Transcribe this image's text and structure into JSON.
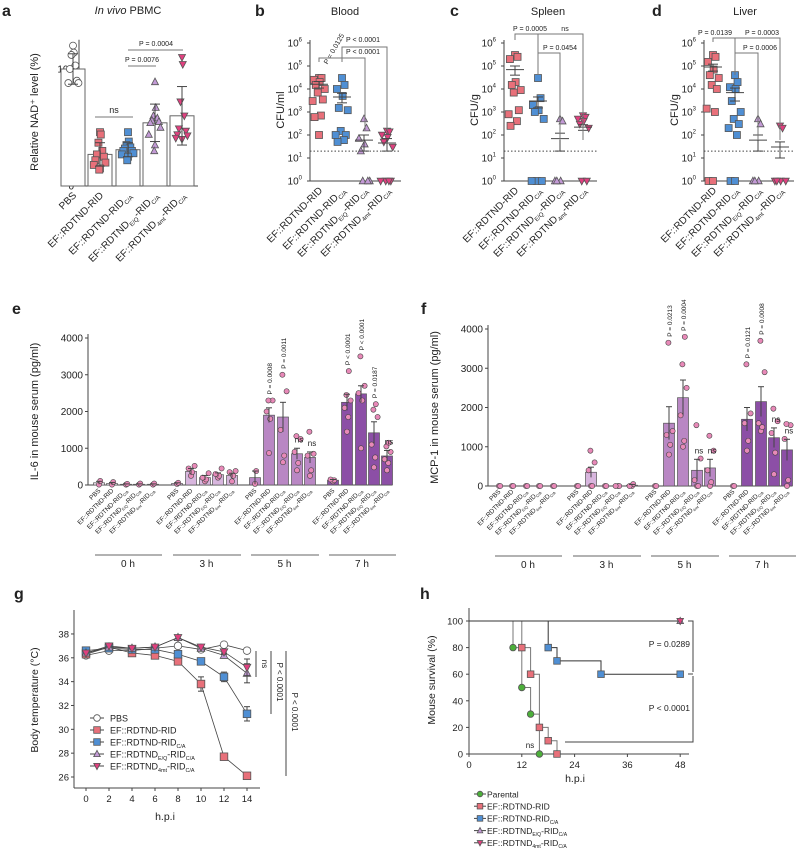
{
  "colors": {
    "PBS": "#ffffff",
    "RID": "#e8707a",
    "CA": "#4f8fd4",
    "EQ": "#c39ad6",
    "4mt": "#e0407f",
    "Parental": "#4caf3a",
    "point": "#e889b8",
    "bar_0h": "#f2e4f2",
    "bar_3h": "#d8b6de",
    "bar_5h": "#b987c4",
    "bar_7h": "#8c4fa6"
  },
  "groups": [
    {
      "key": "PBS",
      "parts": [
        {
          "t": "PBS"
        }
      ]
    },
    {
      "key": "RID",
      "parts": [
        {
          "t": "EF::RDTND-RID"
        }
      ]
    },
    {
      "key": "CA",
      "parts": [
        {
          "t": "EF::RDTND-RID"
        },
        {
          "t": "C/A",
          "sub": true
        }
      ]
    },
    {
      "key": "EQ",
      "parts": [
        {
          "t": "EF::RDTND"
        },
        {
          "t": "E/Q",
          "sub": true
        },
        {
          "t": "-RID"
        },
        {
          "t": "C/A",
          "sub": true
        }
      ]
    },
    {
      "key": "4mt",
      "parts": [
        {
          "t": "EF::RDTND"
        },
        {
          "t": "4mt",
          "sub": true
        },
        {
          "t": "-RID"
        },
        {
          "t": "C/A",
          "sub": true
        }
      ]
    }
  ],
  "parental_label": "Parental",
  "log_tick_base": "10",
  "chart_data": [
    {
      "panel": "a",
      "type": "bar",
      "title_italic": "In vivo",
      "title_rest": " PBMC",
      "ylabel": "Relative NAD⁺ level (%)",
      "ylim": [
        0,
        115
      ],
      "yticks": [
        "0",
        "20",
        "40",
        "60",
        "80",
        "100"
      ],
      "categories": [
        "PBS",
        "RID",
        "CA",
        "EQ",
        "4mt"
      ],
      "means": [
        100,
        27,
        31,
        54,
        60
      ],
      "sd": [
        13,
        10,
        6,
        16,
        25
      ],
      "points": [
        [
          120,
          114,
          112,
          103,
          100,
          90,
          88,
          88
        ],
        [
          46,
          44,
          37,
          30,
          27,
          25,
          22,
          20,
          18,
          15,
          14
        ],
        [
          46,
          38,
          35,
          33,
          32,
          30,
          30,
          28,
          27,
          25,
          22
        ],
        [
          89,
          67,
          60,
          58,
          56,
          55,
          54,
          50,
          44,
          35,
          30
        ],
        [
          110,
          104,
          72,
          60,
          49,
          47,
          44,
          43,
          41,
          40
        ]
      ],
      "annotations": [
        "ns",
        "P = 0.0076",
        "P = 0.0004"
      ]
    },
    {
      "panel": "b",
      "type": "scatter",
      "title": "Blood",
      "ylabel": "CFU/ml",
      "yscale": "log",
      "ylim": [
        1,
        1000000
      ],
      "ytick_exps": [
        "0",
        "1",
        "2",
        "3",
        "4",
        "5",
        "6"
      ],
      "detection_limit": 20,
      "categories": [
        "RID",
        "CA",
        "EQ",
        "4mt"
      ],
      "means": [
        16000,
        4500,
        60,
        45
      ],
      "sem": [
        5000,
        2000,
        40,
        25
      ],
      "points": [
        [
          30000,
          30000,
          25000,
          20000,
          15000,
          10000,
          7000,
          3500,
          3000,
          700,
          600,
          100
        ],
        [
          30000,
          15000,
          10000,
          5000,
          1500,
          1200,
          150,
          100,
          100,
          60,
          50
        ],
        [
          500,
          200,
          70,
          40,
          20,
          1,
          1,
          1
        ],
        [
          150,
          140,
          100,
          80,
          50,
          30,
          1,
          1,
          1,
          1
        ]
      ],
      "annotations": [
        "P = 0.0125",
        "P < 0.0001",
        "P < 0.0001"
      ]
    },
    {
      "panel": "c",
      "type": "scatter",
      "title": "Spleen",
      "ylabel": "CFU/g",
      "yscale": "log",
      "ylim": [
        1,
        1000000
      ],
      "ytick_exps": [
        "0",
        "1",
        "2",
        "3",
        "4",
        "5",
        "6"
      ],
      "detection_limit": 20,
      "categories": [
        "RID",
        "CA",
        "EQ",
        "4mt"
      ],
      "means": [
        70000,
        3000,
        70,
        220
      ],
      "sem": [
        30000,
        1500,
        50,
        60
      ],
      "points": [
        [
          300000,
          250000,
          200000,
          20000,
          15000,
          9000,
          7000,
          1200,
          800,
          400,
          250
        ],
        [
          30000,
          4000,
          2000,
          1200,
          1000,
          500,
          1,
          1,
          1
        ],
        [
          500,
          400,
          1,
          1,
          1
        ],
        [
          700,
          600,
          500,
          400,
          300,
          200,
          1,
          1
        ]
      ],
      "annotations": [
        "P = 0.0005",
        "ns",
        "P = 0.0454"
      ]
    },
    {
      "panel": "d",
      "type": "scatter",
      "title": "Liver",
      "ylabel": "CFU/g",
      "yscale": "log",
      "ylim": [
        1,
        1000000
      ],
      "ytick_exps": [
        "0",
        "1",
        "2",
        "3",
        "4",
        "5",
        "6"
      ],
      "detection_limit": 20,
      "categories": [
        "RID",
        "CA",
        "EQ",
        "4mt"
      ],
      "means": [
        90000,
        7000,
        60,
        30
      ],
      "sem": [
        30000,
        4000,
        40,
        20
      ],
      "points": [
        [
          300000,
          250000,
          150000,
          70000,
          40000,
          30000,
          15000,
          10000,
          1400,
          1000,
          1,
          1
        ],
        [
          40000,
          20000,
          12000,
          10000,
          3000,
          1000,
          500,
          300,
          200,
          100,
          1,
          1
        ],
        [
          500,
          300,
          1,
          1,
          1
        ],
        [
          250,
          200,
          1,
          1,
          1,
          1
        ]
      ],
      "annotations": [
        "P = 0.0139",
        "P = 0.0003",
        "P = 0.0006"
      ]
    },
    {
      "panel": "e",
      "type": "bar",
      "ylabel": "IL-6 in mouse serum (pg/ml)",
      "ylim": [
        0,
        4000
      ],
      "yticks": [
        "0",
        "1000",
        "2000",
        "3000",
        "4000"
      ],
      "timepoints": [
        "0 h",
        "3 h",
        "5 h",
        "7 h"
      ],
      "categories": [
        "PBS",
        "RID",
        "CA",
        "EQ",
        "4mt"
      ],
      "means": [
        [
          60,
          40,
          20,
          20,
          20
        ],
        [
          40,
          370,
          200,
          280,
          260
        ],
        [
          200,
          1900,
          1850,
          850,
          750
        ],
        [
          130,
          2250,
          2480,
          1420,
          790
        ]
      ],
      "sem": [
        [
          40,
          30,
          10,
          10,
          10
        ],
        [
          20,
          80,
          60,
          50,
          60
        ],
        [
          180,
          200,
          400,
          150,
          150
        ],
        [
          20,
          220,
          220,
          300,
          150
        ]
      ],
      "points": [
        [
          [
            10,
            110
          ],
          [
            10,
            80
          ],
          [
            10,
            30
          ],
          [
            10,
            40
          ],
          [
            10,
            40
          ]
        ],
        [
          [
            30,
            60
          ],
          [
            250,
            350,
            450,
            520
          ],
          [
            100,
            150,
            200,
            320
          ],
          [
            200,
            250,
            300,
            450
          ],
          [
            100,
            250,
            350,
            380
          ]
        ],
        [
          [
            30,
            380
          ],
          [
            870,
            1800,
            2000,
            2300,
            2300
          ],
          [
            620,
            800,
            1500,
            2550,
            3000
          ],
          [
            400,
            600,
            900,
            1250,
            1330
          ],
          [
            250,
            400,
            800,
            850,
            1450
          ]
        ],
        [
          [
            100,
            130,
            150
          ],
          [
            1450,
            1850,
            2100,
            2300,
            2450,
            3100
          ],
          [
            1000,
            2300,
            2500,
            2700,
            3500
          ],
          [
            480,
            750,
            1100,
            1850,
            2050,
            2200
          ],
          [
            400,
            600,
            700,
            900,
            1050,
            1150
          ]
        ]
      ],
      "annotations": [
        {
          "t": 2,
          "c": 1,
          "text": "P = 0.0008"
        },
        {
          "t": 2,
          "c": 2,
          "text": "P = 0.0011"
        },
        {
          "t": 2,
          "c": 3,
          "text": "ns"
        },
        {
          "t": 2,
          "c": 4,
          "text": "ns"
        },
        {
          "t": 3,
          "c": 1,
          "text": "P < 0.0001"
        },
        {
          "t": 3,
          "c": 2,
          "text": "P < 0.0001"
        },
        {
          "t": 3,
          "c": 3,
          "text": "P = 0.0187"
        },
        {
          "t": 3,
          "c": 4,
          "text": "ns"
        }
      ]
    },
    {
      "panel": "f",
      "type": "bar",
      "ylabel": "MCP-1 in mouse serum (pg/ml)",
      "ylim": [
        0,
        4000
      ],
      "yticks": [
        "0",
        "1000",
        "2000",
        "3000",
        "4000"
      ],
      "timepoints": [
        "0 h",
        "3 h",
        "5 h",
        "7 h"
      ],
      "categories": [
        "PBS",
        "RID",
        "CA",
        "EQ",
        "4mt"
      ],
      "means": [
        [
          0,
          0,
          0,
          0,
          0
        ],
        [
          0,
          350,
          0,
          0,
          20
        ],
        [
          0,
          1600,
          2250,
          400,
          460
        ],
        [
          0,
          1700,
          2150,
          1230,
          920
        ]
      ],
      "sem": [
        [
          0,
          0,
          0,
          0,
          0
        ],
        [
          0,
          130,
          0,
          0,
          20
        ],
        [
          0,
          420,
          450,
          280,
          220
        ],
        [
          0,
          300,
          380,
          250,
          270
        ]
      ],
      "points": [
        [
          [
            0,
            0
          ],
          [
            0,
            0
          ],
          [
            0,
            0
          ],
          [
            0,
            0
          ],
          [
            0,
            0
          ]
        ],
        [
          [
            0,
            0
          ],
          [
            0,
            0,
            400,
            600,
            900
          ],
          [
            0,
            0
          ],
          [
            0,
            0,
            0
          ],
          [
            0,
            50,
            0
          ]
        ],
        [
          [
            0,
            0
          ],
          [
            800,
            1050,
            1300,
            1400,
            3650
          ],
          [
            1000,
            1150,
            1800,
            2500,
            3100,
            3800
          ],
          [
            0,
            0,
            150,
            700,
            1550
          ],
          [
            0,
            100,
            400,
            900,
            1280
          ]
        ],
        [
          [
            0,
            0
          ],
          [
            900,
            1150,
            1600,
            1850,
            3100
          ],
          [
            1400,
            1500,
            1600,
            2900,
            3700
          ],
          [
            300,
            850,
            1350,
            1650,
            1970
          ],
          [
            0,
            150,
            1200,
            1550,
            1580
          ]
        ]
      ],
      "annotations": [
        {
          "t": 2,
          "c": 1,
          "text": "P = 0.0213"
        },
        {
          "t": 2,
          "c": 2,
          "text": "P = 0.0004"
        },
        {
          "t": 2,
          "c": 3,
          "text": "ns"
        },
        {
          "t": 2,
          "c": 4,
          "text": "ns"
        },
        {
          "t": 3,
          "c": 1,
          "text": "P = 0.0121"
        },
        {
          "t": 3,
          "c": 2,
          "text": "P = 0.0008"
        },
        {
          "t": 3,
          "c": 3,
          "text": "ns"
        },
        {
          "t": 3,
          "c": 4,
          "text": "ns"
        }
      ]
    },
    {
      "panel": "g",
      "type": "line",
      "xlabel": "h.p.i",
      "ylabel": "Body temperature (°C)",
      "xlim": [
        0,
        14
      ],
      "ylim": [
        25,
        39.5
      ],
      "xticks": [
        "0",
        "2",
        "4",
        "6",
        "8",
        "10",
        "12",
        "14"
      ],
      "yticks": [
        "26",
        "28",
        "30",
        "32",
        "34",
        "36",
        "38"
      ],
      "x": [
        0,
        2,
        4,
        6,
        8,
        10,
        12,
        14
      ],
      "series": [
        {
          "key": "PBS",
          "values": [
            36.2,
            36.6,
            36.6,
            36.8,
            37.0,
            36.7,
            37.1,
            36.6
          ],
          "sem": [
            0.1,
            0.1,
            0.1,
            0.1,
            0.1,
            0.1,
            0.1,
            0.1
          ]
        },
        {
          "key": "RID",
          "values": [
            36.3,
            36.9,
            36.4,
            36.2,
            35.7,
            33.8,
            27.7,
            26.1
          ],
          "sem": [
            0.1,
            0.1,
            0.1,
            0.1,
            0.2,
            0.6,
            0.2,
            0.2
          ]
        },
        {
          "key": "CA",
          "values": [
            36.6,
            36.8,
            36.7,
            36.7,
            36.3,
            35.7,
            34.4,
            31.3
          ],
          "sem": [
            0.1,
            0.1,
            0.1,
            0.1,
            0.2,
            0.2,
            0.4,
            0.6
          ]
        },
        {
          "key": "EQ",
          "values": [
            36.4,
            36.9,
            36.8,
            36.9,
            37.7,
            36.8,
            36.2,
            34.7
          ],
          "sem": [
            0.1,
            0.1,
            0.1,
            0.1,
            0.1,
            0.1,
            0.2,
            0.8
          ]
        },
        {
          "key": "4mt",
          "values": [
            36.4,
            37.0,
            36.8,
            36.9,
            37.7,
            36.9,
            36.5,
            35.2
          ],
          "sem": [
            0.1,
            0.1,
            0.1,
            0.1,
            0.1,
            0.1,
            0.2,
            0.7
          ]
        }
      ],
      "annotations": [
        "ns",
        "P < 0.0001",
        "P < 0.0001"
      ]
    },
    {
      "panel": "h",
      "type": "line",
      "subtype": "survival-step",
      "xlabel": "h.p.i",
      "ylabel": "Mouse survival (%)",
      "xlim": [
        0,
        50
      ],
      "ylim": [
        0,
        105
      ],
      "xticks": [
        "0",
        "12",
        "24",
        "36",
        "48"
      ],
      "yticks": [
        "0",
        "20",
        "40",
        "60",
        "80",
        "100"
      ],
      "series": [
        {
          "key": "Parental",
          "x": [
            0,
            10,
            12,
            14,
            16
          ],
          "y": [
            100,
            80,
            50,
            30,
            0
          ]
        },
        {
          "key": "RID",
          "x": [
            0,
            12,
            14,
            16,
            18,
            20
          ],
          "y": [
            100,
            80,
            60,
            20,
            10,
            0
          ]
        },
        {
          "key": "CA",
          "x": [
            0,
            18,
            20,
            30,
            48
          ],
          "y": [
            100,
            80,
            70,
            60,
            60
          ]
        },
        {
          "key": "EQ",
          "x": [
            0,
            48
          ],
          "y": [
            100,
            100
          ]
        },
        {
          "key": "4mt",
          "x": [
            0,
            48
          ],
          "y": [
            100,
            100
          ]
        }
      ],
      "annotations": [
        "P = 0.0289",
        "P < 0.0001",
        "ns"
      ]
    }
  ]
}
